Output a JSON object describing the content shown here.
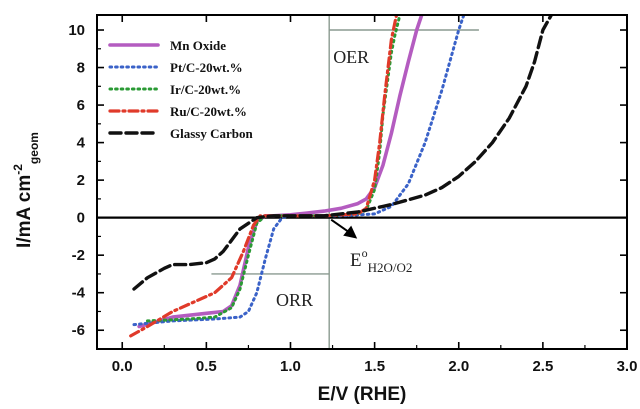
{
  "chart_data": {
    "type": "line",
    "xlabel": "E/V (RHE)",
    "ylabel": {
      "main": "I/mA cm",
      "sup": "-2",
      "sub": "geom"
    },
    "xlim": [
      -0.15,
      3.0
    ],
    "ylim": [
      -7.0,
      10.8
    ],
    "x_ticks": [
      0.0,
      0.5,
      1.0,
      1.5,
      2.0,
      2.5,
      3.0
    ],
    "x_tick_labels": [
      "0.0",
      "0.5",
      "1.0",
      "1.5",
      "2.0",
      "2.5",
      "3.0"
    ],
    "y_ticks": [
      -6,
      -4,
      -2,
      0,
      2,
      4,
      6,
      8,
      10
    ],
    "y_tick_labels": [
      "-6",
      "-4",
      "-2",
      "0",
      "2",
      "4",
      "6",
      "8",
      "10"
    ],
    "grid": false,
    "legend_position": "top-left",
    "series": [
      {
        "name": "Mn Oxide",
        "color": "#b45cc0",
        "dash": "solid",
        "x": [
          0.1,
          0.3,
          0.5,
          0.6,
          0.65,
          0.7,
          0.75,
          0.8,
          0.85,
          0.9,
          1.0,
          1.1,
          1.2,
          1.3,
          1.4,
          1.45,
          1.5,
          1.55,
          1.6,
          1.65,
          1.7,
          1.75,
          1.78
        ],
        "y": [
          -5.8,
          -5.3,
          -5.1,
          -5.0,
          -4.7,
          -3.6,
          -1.6,
          -0.2,
          0.1,
          0.1,
          0.15,
          0.25,
          0.35,
          0.5,
          0.75,
          1.0,
          1.6,
          2.8,
          4.5,
          6.5,
          8.3,
          10.0,
          10.8
        ]
      },
      {
        "name": "Pt/C-20wt.%",
        "color": "#3a62c8",
        "dash": "dotted",
        "x": [
          0.07,
          0.3,
          0.55,
          0.7,
          0.75,
          0.8,
          0.85,
          0.9,
          0.95,
          1.0,
          1.1,
          1.2,
          1.3,
          1.5,
          1.6,
          1.7,
          1.8,
          1.9,
          1.95,
          2.0,
          2.03
        ],
        "y": [
          -5.7,
          -5.5,
          -5.4,
          -5.3,
          -5.0,
          -4.0,
          -2.2,
          -0.6,
          0.0,
          0.1,
          0.1,
          0.1,
          0.1,
          0.2,
          0.6,
          1.8,
          4.0,
          6.8,
          8.4,
          10.0,
          10.8
        ]
      },
      {
        "name": "Ir/C-20wt.%",
        "color": "#2a9a34",
        "dash": "dotted",
        "x": [
          0.15,
          0.4,
          0.55,
          0.65,
          0.7,
          0.75,
          0.8,
          0.85,
          0.9,
          1.0,
          1.2,
          1.4,
          1.45,
          1.5,
          1.53,
          1.55,
          1.58,
          1.6,
          1.62,
          1.65
        ],
        "y": [
          -5.5,
          -5.4,
          -5.3,
          -4.8,
          -3.8,
          -2.0,
          -0.3,
          0.1,
          0.1,
          0.1,
          0.1,
          0.2,
          0.4,
          1.5,
          3.5,
          5.5,
          7.5,
          8.8,
          9.7,
          10.8
        ]
      },
      {
        "name": "Ru/C-20wt.%",
        "color": "#e03a2a",
        "dash": "dashdot",
        "x": [
          0.05,
          0.15,
          0.3,
          0.45,
          0.55,
          0.65,
          0.72,
          0.78,
          0.82,
          0.9,
          1.0,
          1.2,
          1.4,
          1.45,
          1.5,
          1.53,
          1.56,
          1.6,
          1.63
        ],
        "y": [
          -6.3,
          -5.8,
          -5.0,
          -4.4,
          -4.0,
          -3.2,
          -1.8,
          -0.4,
          0.1,
          0.1,
          0.1,
          0.1,
          0.2,
          0.5,
          2.0,
          4.0,
          6.5,
          9.5,
          10.8
        ]
      },
      {
        "name": "Glassy Carbon",
        "color": "#111111",
        "dash": "dashed",
        "x": [
          0.07,
          0.15,
          0.25,
          0.3,
          0.4,
          0.5,
          0.55,
          0.6,
          0.65,
          0.7,
          0.75,
          0.8,
          0.9,
          1.0,
          1.2,
          1.4,
          1.6,
          1.8,
          1.9,
          2.0,
          2.1,
          2.2,
          2.3,
          2.4,
          2.45,
          2.5,
          2.55
        ],
        "y": [
          -3.8,
          -3.2,
          -2.7,
          -2.5,
          -2.5,
          -2.4,
          -2.2,
          -1.8,
          -1.2,
          -0.6,
          -0.3,
          0.0,
          0.1,
          0.1,
          0.1,
          0.3,
          0.7,
          1.2,
          1.6,
          2.2,
          3.0,
          4.0,
          5.3,
          7.0,
          8.3,
          10.0,
          10.8
        ]
      }
    ],
    "annotations": {
      "oer_label": "OER",
      "orr_label": "ORR",
      "potential_label": {
        "main": "E",
        "sup": "o",
        "sub": "H2O/O2"
      },
      "reference_potential_x": 1.23,
      "oer_reference_y": 10.0,
      "orr_reference_y": -3.0
    }
  }
}
